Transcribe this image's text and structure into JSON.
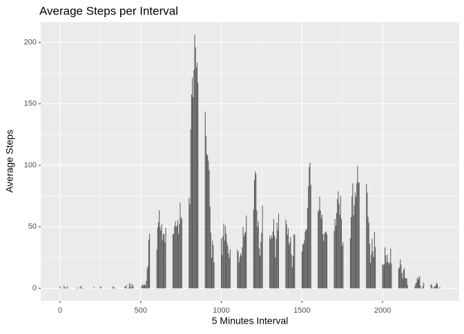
{
  "chart_data": {
    "type": "bar",
    "title": "Average Steps per Interval",
    "x_label": "5 Minutes Interval",
    "y_label": "Average Steps",
    "color": "#595959",
    "grid": true,
    "x": [
      0,
      5,
      10,
      15,
      20,
      25,
      30,
      35,
      40,
      45,
      50,
      55,
      100,
      105,
      110,
      115,
      120,
      125,
      130,
      135,
      140,
      145,
      150,
      155,
      200,
      205,
      210,
      215,
      220,
      225,
      230,
      235,
      240,
      245,
      250,
      255,
      300,
      305,
      310,
      315,
      320,
      325,
      330,
      335,
      340,
      345,
      350,
      355,
      400,
      405,
      410,
      415,
      420,
      425,
      430,
      435,
      440,
      445,
      450,
      455,
      500,
      505,
      510,
      515,
      520,
      525,
      530,
      535,
      540,
      545,
      550,
      555,
      600,
      605,
      610,
      615,
      620,
      625,
      630,
      635,
      640,
      645,
      650,
      655,
      700,
      705,
      710,
      715,
      720,
      725,
      730,
      735,
      740,
      745,
      750,
      755,
      800,
      805,
      810,
      815,
      820,
      825,
      830,
      835,
      840,
      845,
      850,
      855,
      900,
      905,
      910,
      915,
      920,
      925,
      930,
      935,
      940,
      945,
      950,
      955,
      1000,
      1005,
      1010,
      1015,
      1020,
      1025,
      1030,
      1035,
      1040,
      1045,
      1050,
      1055,
      1100,
      1105,
      1110,
      1115,
      1120,
      1125,
      1130,
      1135,
      1140,
      1145,
      1150,
      1155,
      1200,
      1205,
      1210,
      1215,
      1220,
      1225,
      1230,
      1235,
      1240,
      1245,
      1250,
      1255,
      1300,
      1305,
      1310,
      1315,
      1320,
      1325,
      1330,
      1335,
      1340,
      1345,
      1350,
      1355,
      1400,
      1405,
      1410,
      1415,
      1420,
      1425,
      1430,
      1435,
      1440,
      1445,
      1450,
      1455,
      1500,
      1505,
      1510,
      1515,
      1520,
      1525,
      1530,
      1535,
      1540,
      1545,
      1550,
      1555,
      1600,
      1605,
      1610,
      1615,
      1620,
      1625,
      1630,
      1635,
      1640,
      1645,
      1650,
      1655,
      1700,
      1705,
      1710,
      1715,
      1720,
      1725,
      1730,
      1735,
      1740,
      1745,
      1750,
      1755,
      1800,
      1805,
      1810,
      1815,
      1820,
      1825,
      1830,
      1835,
      1840,
      1845,
      1850,
      1855,
      1900,
      1905,
      1910,
      1915,
      1920,
      1925,
      1930,
      1935,
      1940,
      1945,
      1950,
      1955,
      2000,
      2005,
      2010,
      2015,
      2020,
      2025,
      2030,
      2035,
      2040,
      2045,
      2050,
      2055,
      2100,
      2105,
      2110,
      2115,
      2120,
      2125,
      2130,
      2135,
      2140,
      2145,
      2150,
      2155,
      2200,
      2205,
      2210,
      2215,
      2220,
      2225,
      2230,
      2235,
      2240,
      2245,
      2250,
      2255,
      2300,
      2305,
      2310,
      2315,
      2320,
      2325,
      2330,
      2335,
      2340,
      2345,
      2350,
      2355
    ],
    "values": [
      1.7,
      0.3,
      0.1,
      0.2,
      0.1,
      2.1,
      0.5,
      0.9,
      0,
      1.5,
      0.3,
      0.1,
      0.3,
      0.7,
      0.2,
      0.3,
      0,
      1.1,
      1.8,
      0.2,
      0.2,
      0.4,
      0.3,
      0,
      0,
      0,
      1.1,
      0,
      0,
      0.1,
      0,
      0.2,
      0,
      0,
      1.5,
      0.9,
      0,
      0,
      0,
      0,
      0.2,
      0.6,
      1.6,
      0.6,
      0.5,
      0.1,
      0,
      0,
      1.2,
      0.9,
      2.6,
      0,
      0.3,
      0.4,
      4.1,
      0.7,
      3.5,
      0.8,
      3.1,
      1.1,
      0,
      1.6,
      3,
      2.2,
      3.3,
      3,
      2.1,
      6.1,
      16,
      18.3,
      39.5,
      44.5,
      31.5,
      49.3,
      53.8,
      63.5,
      50,
      47.1,
      52.2,
      39.3,
      44,
      44.2,
      37.4,
      49,
      43.8,
      44.4,
      50.5,
      54.5,
      49.9,
      51,
      55.7,
      44.3,
      52.3,
      69.5,
      57.8,
      56.2,
      73.4,
      68.2,
      129.4,
      157.5,
      171.2,
      155.4,
      177.3,
      206.2,
      195.9,
      179.6,
      183.4,
      167,
      143.5,
      124,
      109.1,
      108.1,
      103.7,
      96,
      66.2,
      45.2,
      24.8,
      38.8,
      35,
      21.1,
      40.6,
      27,
      42.4,
      52.7,
      38.9,
      50.8,
      44.3,
      37.4,
      34.7,
      28.3,
      25.1,
      31.9,
      31.4,
      29.7,
      21.3,
      25.5,
      28.4,
      26.5,
      33.4,
      50,
      42,
      44.6,
      46,
      59.2,
      63.9,
      87.7,
      94.8,
      92.8,
      63.4,
      50.2,
      54.5,
      32.4,
      26.5,
      37.7,
      45.1,
      67.3,
      42.3,
      39.9,
      43.3,
      41,
      46.2,
      56.4,
      42.8,
      25.1,
      40,
      53.5,
      47.3,
      60.8,
      55.8,
      52,
      43.6,
      48.7,
      35.5,
      37.5,
      41.8,
      27.5,
      17.1,
      26.1,
      43.6,
      43.8,
      30,
      36.1,
      35.5,
      38.8,
      46,
      47.8,
      48.1,
      65.3,
      82.9,
      98.7,
      102.1,
      84,
      62.1,
      64.1,
      74.5,
      63.2,
      56.9,
      59.8,
      43.9,
      38.6,
      44.7,
      45.5,
      46.2,
      43.7,
      46.6,
      56.3,
      50.7,
      61.2,
      72.7,
      78.9,
      68.9,
      59.7,
      75.1,
      56.5,
      34.8,
      37.5,
      40.7,
      58,
      74.7,
      85.3,
      59.3,
      67.8,
      77.7,
      74.2,
      85.3,
      99.5,
      86.6,
      85.6,
      84.9,
      77.8,
      58,
      53.4,
      36.3,
      20.7,
      27.4,
      40,
      30.2,
      25.5,
      45.7,
      33.5,
      19.6,
      19,
      19.3,
      33.3,
      26.8,
      21.2,
      27.3,
      21.3,
      19.5,
      21.3,
      32.3,
      20.2,
      15.9,
      17.2,
      23.5,
      19.2,
      12.5,
      8,
      14.7,
      16.3,
      8.7,
      7.8,
      8.1,
      2.6,
      1.5,
      3.7,
      4.8,
      8.5,
      7.1,
      8.7,
      9.8,
      2.2,
      0.3,
      0.1,
      1.6,
      4.6,
      3.3,
      2.8,
      0,
      0.8,
      1,
      1.6,
      2.6,
      4.7,
      3.3,
      0.6,
      0.2,
      1.1
    ],
    "bar_width": 4.5,
    "xlim": [
      -120,
      2475
    ],
    "xticks": [
      0,
      500,
      1000,
      1500,
      2000
    ],
    "ylim": [
      -10.3,
      216.5
    ],
    "yticks": [
      0,
      50,
      100,
      150,
      200
    ]
  }
}
